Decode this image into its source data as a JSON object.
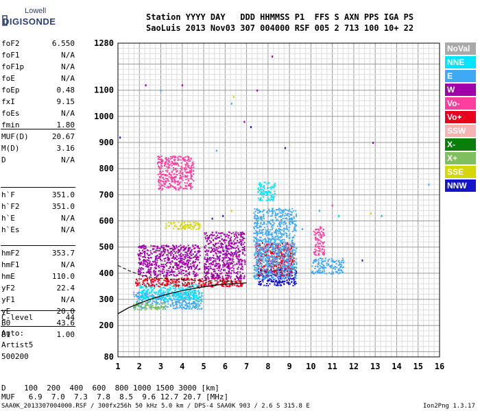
{
  "logo": {
    "top": "Lowell",
    "bottom": "DIGISONDE"
  },
  "header": {
    "labels": "Station YYYY DAY   DDD HHMMSS P1  FFS S AXN PPS IGA PS",
    "values": "SaoLuis 2013 Nov03 307 004000 RSF 005 2 713 100 10+ 22"
  },
  "params": {
    "group1": [
      {
        "label": "foF2",
        "value": "6.550"
      },
      {
        "label": "foF1",
        "value": "N/A"
      },
      {
        "label": "foF1p",
        "value": "N/A"
      },
      {
        "label": "foE",
        "value": "N/A"
      },
      {
        "label": "foEp",
        "value": "0.48"
      },
      {
        "label": "fxI",
        "value": "9.15"
      },
      {
        "label": "foEs",
        "value": "N/A"
      },
      {
        "label": "fmin",
        "value": "1.80"
      }
    ],
    "group2": [
      {
        "label": "MUF(D)",
        "value": "20.67"
      },
      {
        "label": "M(D)",
        "value": "3.16"
      },
      {
        "label": "D",
        "value": "N/A"
      }
    ],
    "group3": [
      {
        "label": "h`F",
        "value": "351.0"
      },
      {
        "label": "h`F2",
        "value": "351.0"
      },
      {
        "label": "h`E",
        "value": "N/A"
      },
      {
        "label": "h`Es",
        "value": "N/A"
      }
    ],
    "group4": [
      {
        "label": "hmF2",
        "value": "353.7"
      },
      {
        "label": "hmF1",
        "value": "N/A"
      },
      {
        "label": "hmE",
        "value": "110.0"
      },
      {
        "label": "yF2",
        "value": "22.4"
      },
      {
        "label": "yF1",
        "value": "N/A"
      },
      {
        "label": "yE",
        "value": "20.0"
      },
      {
        "label": "B0",
        "value": "43.6"
      },
      {
        "label": "B1",
        "value": "1.00"
      }
    ],
    "clevel": {
      "label": "C-level",
      "value": "44"
    },
    "auto": [
      "Auto:",
      "Artist5",
      "500200"
    ]
  },
  "legend": [
    {
      "name": "NoVal",
      "color": "#a9a9a9"
    },
    {
      "name": "NNE",
      "color": "#00e5ff"
    },
    {
      "name": "E",
      "color": "#3fa9f5"
    },
    {
      "name": "W",
      "color": "#a000a8"
    },
    {
      "name": "Vo-",
      "color": "#ff3fa0"
    },
    {
      "name": "Vo+",
      "color": "#e8001c"
    },
    {
      "name": "SSW",
      "color": "#f7b2b2"
    },
    {
      "name": "X-",
      "color": "#0b7d0b"
    },
    {
      "name": "X+",
      "color": "#7fbf5f"
    },
    {
      "name": "SSE",
      "color": "#d6d600"
    },
    {
      "name": "NNW",
      "color": "#1414c8"
    }
  ],
  "chart_data": {
    "type": "scatter",
    "xlim": [
      1,
      16
    ],
    "ylim": [
      80,
      1280
    ],
    "x_ticks": [
      1,
      2,
      3,
      4,
      5,
      6,
      7,
      8,
      9,
      10,
      11,
      12,
      13,
      14,
      15,
      16
    ],
    "y_ticks": [
      80,
      200,
      300,
      400,
      500,
      600,
      700,
      800,
      900,
      1000,
      1100,
      1280
    ],
    "grid": true,
    "legend_position": "right",
    "trace_curve": {
      "x": [
        1.0,
        1.5,
        2.0,
        2.5,
        3.0,
        3.5,
        4.0,
        4.5,
        5.0,
        5.5,
        6.0,
        6.5,
        7.0
      ],
      "y": [
        245,
        268,
        285,
        300,
        313,
        324,
        333,
        341,
        348,
        354,
        358,
        361,
        363
      ]
    },
    "dashed_curve": {
      "x": [
        1.0,
        1.5,
        2.0,
        2.5,
        3.0,
        3.5,
        4.0,
        4.5,
        5.0,
        5.5,
        6.0,
        6.4
      ],
      "y": [
        430,
        410,
        395,
        385,
        380,
        377,
        375,
        373,
        372,
        371,
        370,
        369
      ]
    },
    "echo_clusters": [
      {
        "series": "E",
        "color": "#3fa9f5",
        "x": [
          1.7,
          4.9
        ],
        "y": [
          265,
          330
        ]
      },
      {
        "series": "X+",
        "color": "#7fbf5f",
        "x": [
          1.7,
          3.2
        ],
        "y": [
          262,
          290
        ]
      },
      {
        "series": "NNE",
        "color": "#00e5ff",
        "x": [
          2.0,
          4.8
        ],
        "y": [
          300,
          360
        ]
      },
      {
        "series": "Vo+",
        "color": "#e8001c",
        "x": [
          1.8,
          6.8
        ],
        "y": [
          350,
          385
        ]
      },
      {
        "series": "W",
        "color": "#a000a8",
        "x": [
          1.9,
          4.8
        ],
        "y": [
          390,
          510
        ]
      },
      {
        "series": "W",
        "color": "#a000a8",
        "x": [
          5.0,
          6.9
        ],
        "y": [
          380,
          560
        ]
      },
      {
        "series": "NNW",
        "color": "#1414c8",
        "x": [
          7.5,
          9.3
        ],
        "y": [
          355,
          420
        ]
      },
      {
        "series": "Vo+",
        "color": "#e8001c",
        "x": [
          7.4,
          9.2
        ],
        "y": [
          390,
          520
        ]
      },
      {
        "series": "E",
        "color": "#3fa9f5",
        "x": [
          7.3,
          9.3
        ],
        "y": [
          380,
          650
        ]
      },
      {
        "series": "SSE",
        "color": "#d6d600",
        "x": [
          3.2,
          4.8
        ],
        "y": [
          570,
          600
        ]
      },
      {
        "series": "NNE",
        "color": "#00e5ff",
        "x": [
          7.5,
          8.3
        ],
        "y": [
          680,
          750
        ]
      },
      {
        "series": "Vo-",
        "color": "#ff3fa0",
        "x": [
          2.8,
          4.5
        ],
        "y": [
          720,
          850
        ]
      },
      {
        "series": "E",
        "color": "#3fa9f5",
        "x": [
          10.0,
          11.5
        ],
        "y": [
          400,
          460
        ]
      },
      {
        "series": "Vo-",
        "color": "#ff3fa0",
        "x": [
          10.1,
          10.6
        ],
        "y": [
          470,
          580
        ]
      }
    ],
    "scattered_points": [
      {
        "x": 1.1,
        "y": 920,
        "color": "#1414c8"
      },
      {
        "x": 2.3,
        "y": 1120,
        "color": "#a000a8"
      },
      {
        "x": 3.0,
        "y": 1100,
        "color": "#3fa9f5"
      },
      {
        "x": 4.0,
        "y": 1120,
        "color": "#a000a8"
      },
      {
        "x": 6.3,
        "y": 1050,
        "color": "#3fa9f5"
      },
      {
        "x": 6.4,
        "y": 1075,
        "color": "#d6d600"
      },
      {
        "x": 7.5,
        "y": 1100,
        "color": "#a000a8"
      },
      {
        "x": 8.2,
        "y": 1230,
        "color": "#a000a8"
      },
      {
        "x": 5.6,
        "y": 870,
        "color": "#3fa9f5"
      },
      {
        "x": 6.9,
        "y": 980,
        "color": "#a000a8"
      },
      {
        "x": 7.2,
        "y": 960,
        "color": "#1414c8"
      },
      {
        "x": 8.8,
        "y": 880,
        "color": "#1414c8"
      },
      {
        "x": 12.9,
        "y": 900,
        "color": "#a000a8"
      },
      {
        "x": 12.4,
        "y": 450,
        "color": "#1414c8"
      },
      {
        "x": 13.3,
        "y": 620,
        "color": "#3fa9f5"
      },
      {
        "x": 12.8,
        "y": 630,
        "color": "#d6d600"
      },
      {
        "x": 15.5,
        "y": 740,
        "color": "#3fa9f5"
      },
      {
        "x": 11.0,
        "y": 660,
        "color": "#ff3fa0"
      },
      {
        "x": 11.3,
        "y": 620,
        "color": "#00e5ff"
      },
      {
        "x": 10.4,
        "y": 640,
        "color": "#3fa9f5"
      },
      {
        "x": 9.6,
        "y": 570,
        "color": "#3fa9f5"
      },
      {
        "x": 5.9,
        "y": 620,
        "color": "#1414c8"
      },
      {
        "x": 5.4,
        "y": 610,
        "color": "#1414c8"
      },
      {
        "x": 6.3,
        "y": 640,
        "color": "#d6d600"
      }
    ]
  },
  "footer": {
    "d_row": "D    100  200  400  600  800 1000 1500 3000 [km]",
    "muf_row": "MUF   6.9  7.0  7.3  7.8  8.5  9.6 12.7 20.7 [MHz]",
    "file_info": "SAA0K_2013307004000.RSF / 300fx256h 50 kHz 5.0 km / DPS-4 SAA0K 903 / 2.6 S 315.8 E",
    "version": "Ion2Png 1.3.17"
  }
}
